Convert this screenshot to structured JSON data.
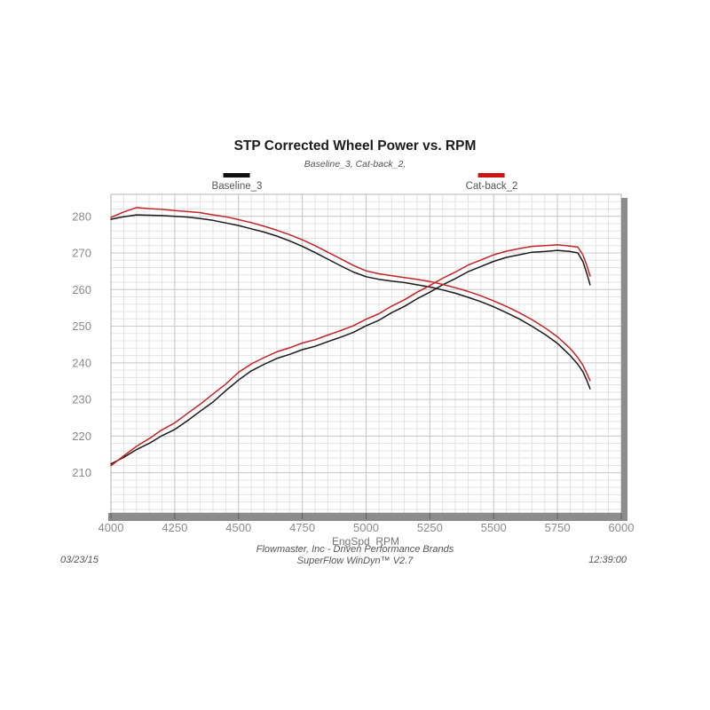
{
  "header": {
    "title": "STP Corrected Wheel Power vs. RPM",
    "subtitle": "Baseline_3, Cat-back_2,"
  },
  "legend": {
    "items": [
      {
        "label": "Baseline_3",
        "color": "#111111"
      },
      {
        "label": "Cat-back_2",
        "color": "#cc1414"
      }
    ]
  },
  "footer": {
    "date": "03/23/15",
    "time": "12:39:00",
    "line1": "Flowmaster, Inc - Driven Performance Brands",
    "line2": "SuperFlow WinDyn™ V2.7"
  },
  "chart_data": {
    "type": "line",
    "title": "STP Corrected Wheel Power vs. RPM",
    "subtitle": "Baseline_3, Cat-back_2,",
    "xlabel": "EngSpd  RPM",
    "ylabel": "",
    "legend_position": "top",
    "grid": {
      "minor_color": "#e3e3e3",
      "major_color": "#c9c9c9",
      "border_color": "#b4b4b4",
      "shadow_color": "#8c8c8c",
      "tick_text_color": "#8a8a8a",
      "tick_mark_color": "#606060"
    },
    "axes": {
      "x": {
        "min": 4000,
        "max": 6000,
        "ticks": [
          4000,
          4250,
          4500,
          4750,
          5000,
          5250,
          5500,
          5750,
          6000
        ],
        "minor_step": 50
      },
      "y": {
        "min": 199,
        "max": 286,
        "ticks": [
          210,
          220,
          230,
          240,
          250,
          260,
          270,
          280
        ],
        "minor_step": 2
      }
    },
    "series": [
      {
        "name": "Baseline_3 power",
        "legend": "Baseline_3",
        "color": "#1a1a1a",
        "points": [
          [
            4000,
            212.4
          ],
          [
            4050,
            214.2
          ],
          [
            4100,
            216.3
          ],
          [
            4150,
            218.0
          ],
          [
            4200,
            220.1
          ],
          [
            4250,
            221.8
          ],
          [
            4300,
            224.2
          ],
          [
            4350,
            226.8
          ],
          [
            4400,
            229.3
          ],
          [
            4450,
            232.4
          ],
          [
            4500,
            235.3
          ],
          [
            4550,
            237.8
          ],
          [
            4600,
            239.6
          ],
          [
            4650,
            241.2
          ],
          [
            4700,
            242.3
          ],
          [
            4750,
            243.6
          ],
          [
            4800,
            244.5
          ],
          [
            4850,
            245.8
          ],
          [
            4900,
            247.0
          ],
          [
            4950,
            248.3
          ],
          [
            5000,
            250.1
          ],
          [
            5050,
            251.6
          ],
          [
            5100,
            253.7
          ],
          [
            5150,
            255.4
          ],
          [
            5200,
            257.5
          ],
          [
            5250,
            259.3
          ],
          [
            5300,
            261.3
          ],
          [
            5350,
            263.0
          ],
          [
            5400,
            264.9
          ],
          [
            5450,
            266.3
          ],
          [
            5500,
            267.7
          ],
          [
            5550,
            268.8
          ],
          [
            5600,
            269.5
          ],
          [
            5650,
            270.2
          ],
          [
            5700,
            270.4
          ],
          [
            5750,
            270.7
          ],
          [
            5800,
            270.4
          ],
          [
            5830,
            270.0
          ],
          [
            5850,
            267.6
          ],
          [
            5865,
            264.4
          ],
          [
            5878,
            261.3
          ]
        ]
      },
      {
        "name": "Baseline_3 torque",
        "legend": "Baseline_3",
        "color": "#1a1a1a",
        "points": [
          [
            4000,
            279.2
          ],
          [
            4050,
            279.9
          ],
          [
            4100,
            280.4
          ],
          [
            4150,
            280.3
          ],
          [
            4200,
            280.2
          ],
          [
            4250,
            280.0
          ],
          [
            4300,
            279.8
          ],
          [
            4350,
            279.4
          ],
          [
            4400,
            278.9
          ],
          [
            4450,
            278.2
          ],
          [
            4500,
            277.5
          ],
          [
            4550,
            276.6
          ],
          [
            4600,
            275.7
          ],
          [
            4650,
            274.6
          ],
          [
            4700,
            273.3
          ],
          [
            4750,
            271.8
          ],
          [
            4800,
            270.1
          ],
          [
            4850,
            268.3
          ],
          [
            4900,
            266.5
          ],
          [
            4950,
            264.8
          ],
          [
            5000,
            263.5
          ],
          [
            5050,
            262.8
          ],
          [
            5100,
            262.3
          ],
          [
            5150,
            261.9
          ],
          [
            5200,
            261.3
          ],
          [
            5250,
            260.7
          ],
          [
            5300,
            259.9
          ],
          [
            5350,
            259.0
          ],
          [
            5400,
            257.9
          ],
          [
            5450,
            256.7
          ],
          [
            5500,
            255.3
          ],
          [
            5550,
            253.7
          ],
          [
            5600,
            252.0
          ],
          [
            5650,
            250.0
          ],
          [
            5700,
            247.8
          ],
          [
            5750,
            245.3
          ],
          [
            5800,
            242.0
          ],
          [
            5830,
            239.6
          ],
          [
            5850,
            237.5
          ],
          [
            5865,
            235.2
          ],
          [
            5878,
            232.9
          ]
        ]
      },
      {
        "name": "Cat-back_2 power",
        "legend": "Cat-back_2",
        "color": "#c62424",
        "points": [
          [
            4000,
            211.9
          ],
          [
            4050,
            214.6
          ],
          [
            4100,
            217.2
          ],
          [
            4150,
            219.3
          ],
          [
            4200,
            221.7
          ],
          [
            4250,
            223.6
          ],
          [
            4300,
            226.2
          ],
          [
            4350,
            228.7
          ],
          [
            4400,
            231.5
          ],
          [
            4450,
            234.2
          ],
          [
            4500,
            237.4
          ],
          [
            4550,
            239.7
          ],
          [
            4600,
            241.4
          ],
          [
            4650,
            243.0
          ],
          [
            4700,
            244.1
          ],
          [
            4750,
            245.4
          ],
          [
            4800,
            246.3
          ],
          [
            4850,
            247.6
          ],
          [
            4900,
            248.8
          ],
          [
            4950,
            250.1
          ],
          [
            5000,
            251.9
          ],
          [
            5050,
            253.4
          ],
          [
            5100,
            255.5
          ],
          [
            5150,
            257.2
          ],
          [
            5200,
            259.3
          ],
          [
            5250,
            261.1
          ],
          [
            5300,
            263.1
          ],
          [
            5350,
            264.8
          ],
          [
            5400,
            266.7
          ],
          [
            5450,
            268.1
          ],
          [
            5500,
            269.5
          ],
          [
            5550,
            270.5
          ],
          [
            5600,
            271.2
          ],
          [
            5650,
            271.8
          ],
          [
            5700,
            272.0
          ],
          [
            5750,
            272.2
          ],
          [
            5800,
            271.9
          ],
          [
            5830,
            271.6
          ],
          [
            5850,
            269.4
          ],
          [
            5865,
            266.6
          ],
          [
            5878,
            263.7
          ]
        ]
      },
      {
        "name": "Cat-back_2 torque",
        "legend": "Cat-back_2",
        "color": "#c62424",
        "points": [
          [
            4000,
            279.7
          ],
          [
            4050,
            281.2
          ],
          [
            4100,
            282.4
          ],
          [
            4150,
            282.1
          ],
          [
            4200,
            281.9
          ],
          [
            4250,
            281.6
          ],
          [
            4300,
            281.3
          ],
          [
            4350,
            281.0
          ],
          [
            4400,
            280.4
          ],
          [
            4450,
            279.9
          ],
          [
            4500,
            279.1
          ],
          [
            4550,
            278.3
          ],
          [
            4600,
            277.3
          ],
          [
            4650,
            276.2
          ],
          [
            4700,
            275.0
          ],
          [
            4750,
            273.6
          ],
          [
            4800,
            272.0
          ],
          [
            4850,
            270.2
          ],
          [
            4900,
            268.4
          ],
          [
            4950,
            266.6
          ],
          [
            5000,
            265.1
          ],
          [
            5050,
            264.3
          ],
          [
            5100,
            263.8
          ],
          [
            5150,
            263.3
          ],
          [
            5200,
            262.8
          ],
          [
            5250,
            262.2
          ],
          [
            5300,
            261.4
          ],
          [
            5350,
            260.5
          ],
          [
            5400,
            259.5
          ],
          [
            5450,
            258.3
          ],
          [
            5500,
            256.9
          ],
          [
            5550,
            255.4
          ],
          [
            5600,
            253.7
          ],
          [
            5650,
            251.8
          ],
          [
            5700,
            249.6
          ],
          [
            5750,
            247.1
          ],
          [
            5800,
            243.9
          ],
          [
            5830,
            241.4
          ],
          [
            5850,
            239.3
          ],
          [
            5865,
            237.1
          ],
          [
            5878,
            235.1
          ]
        ]
      }
    ]
  }
}
